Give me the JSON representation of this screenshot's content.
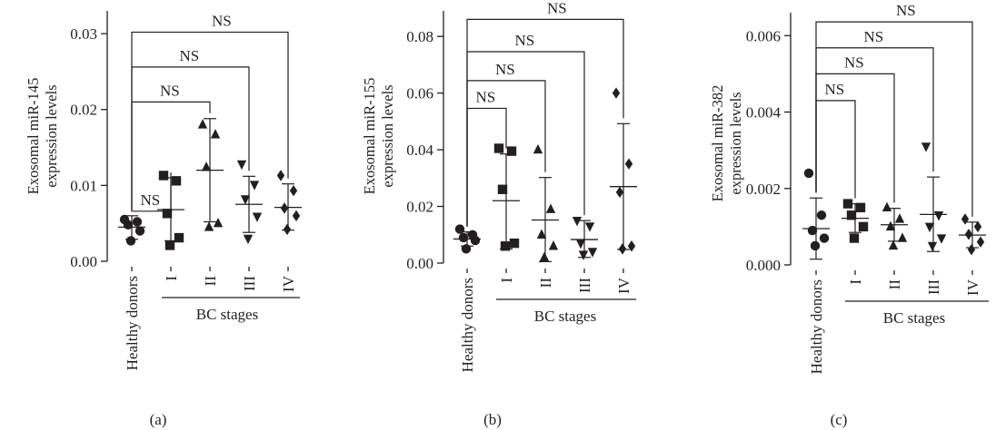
{
  "figure": {
    "group_label": "BC stages"
  },
  "chart_data": [
    {
      "type": "scatter",
      "panel_label": "(a)",
      "ylabel_lines": [
        "Exosomal miR-145",
        "expression levels"
      ],
      "ylim": [
        0,
        0.033
      ],
      "yticks": [
        0,
        0.01,
        0.02,
        0.03
      ],
      "ytick_labels": [
        "0.00",
        "0.01",
        "0.02",
        "0.03"
      ],
      "categories": [
        "Healthy donors",
        "I",
        "II",
        "III",
        "IV"
      ],
      "markers": [
        "circle",
        "square",
        "triangle",
        "triangle-down",
        "diamond"
      ],
      "points": [
        [
          0.0055,
          0.0052,
          0.0048,
          0.004,
          0.0027
        ],
        [
          0.0113,
          0.0106,
          0.0063,
          0.0031,
          0.0021
        ],
        [
          0.018,
          0.0167,
          0.0124,
          0.005,
          0.0045
        ],
        [
          0.0128,
          0.0101,
          0.0082,
          0.0059,
          0.003
        ],
        [
          0.0113,
          0.0093,
          0.007,
          0.006,
          0.0042
        ]
      ],
      "means": [
        0.0045,
        0.0068,
        0.012,
        0.0075,
        0.0071
      ],
      "sd_upper": [
        0.006,
        0.011,
        0.0188,
        0.0112,
        0.0102
      ],
      "sd_lower": [
        0.0029,
        0.0027,
        0.0052,
        0.0038,
        0.0041
      ],
      "brackets": [
        {
          "to": 1,
          "y": 0.0066,
          "label": "NS"
        },
        {
          "to": 2,
          "y": 0.021,
          "label": "NS"
        },
        {
          "to": 3,
          "y": 0.0256,
          "label": "NS"
        },
        {
          "to": 4,
          "y": 0.0302,
          "label": "NS"
        }
      ]
    },
    {
      "type": "scatter",
      "panel_label": "(b)",
      "ylabel_lines": [
        "Exosomal miR-155",
        "expression levels"
      ],
      "ylim": [
        0,
        0.089
      ],
      "yticks": [
        0,
        0.02,
        0.04,
        0.06,
        0.08
      ],
      "ytick_labels": [
        "0.00",
        "0.02",
        "0.04",
        "0.06",
        "0.08"
      ],
      "categories": [
        "Healthy donors",
        "I",
        "II",
        "III",
        "IV"
      ],
      "markers": [
        "circle",
        "square",
        "triangle",
        "triangle-down",
        "diamond"
      ],
      "points": [
        [
          0.012,
          0.01,
          0.009,
          0.008,
          0.005
        ],
        [
          0.0405,
          0.0395,
          0.026,
          0.007,
          0.006
        ],
        [
          0.04,
          0.019,
          0.01,
          0.006,
          0.002
        ],
        [
          0.015,
          0.013,
          0.007,
          0.004,
          0.003
        ],
        [
          0.06,
          0.035,
          0.025,
          0.006,
          0.005
        ]
      ],
      "means": [
        0.0085,
        0.022,
        0.0152,
        0.0083,
        0.027
      ],
      "sd_upper": [
        0.011,
        0.0385,
        0.0302,
        0.015,
        0.0492
      ],
      "sd_lower": [
        0.006,
        0.005,
        0.0005,
        0.002,
        0.0048
      ],
      "brackets": [
        {
          "to": 1,
          "y": 0.0546,
          "label": "NS"
        },
        {
          "to": 2,
          "y": 0.0644,
          "label": "NS"
        },
        {
          "to": 3,
          "y": 0.0746,
          "label": "NS"
        },
        {
          "to": 4,
          "y": 0.086,
          "label": "NS"
        }
      ]
    },
    {
      "type": "scatter",
      "panel_label": "(c)",
      "ylabel_lines": [
        "Exosomal miR-382",
        "expression levels"
      ],
      "ylim": [
        0,
        0.0066
      ],
      "yticks": [
        0,
        0.002,
        0.004,
        0.006
      ],
      "ytick_labels": [
        "0.000",
        "0.002",
        "0.004",
        "0.006"
      ],
      "categories": [
        "Healthy donors",
        "I",
        "II",
        "III",
        "IV"
      ],
      "markers": [
        "circle",
        "square",
        "triangle",
        "triangle-down",
        "diamond"
      ],
      "points": [
        [
          0.0024,
          0.0013,
          0.0009,
          0.0007,
          0.0005
        ],
        [
          0.0016,
          0.0015,
          0.0013,
          0.001,
          0.0007
        ],
        [
          0.0015,
          0.0012,
          0.001,
          0.0007,
          0.0005
        ],
        [
          0.0031,
          0.0013,
          0.001,
          0.0007,
          0.0005
        ],
        [
          0.0012,
          0.001,
          0.0008,
          0.0006,
          0.0004
        ]
      ],
      "means": [
        0.00095,
        0.00122,
        0.00105,
        0.00132,
        0.00078
      ],
      "sd_upper": [
        0.00175,
        0.0016,
        0.00148,
        0.0023,
        0.00112
      ],
      "sd_lower": [
        0.00015,
        0.00085,
        0.00062,
        0.00035,
        0.00045
      ],
      "brackets": [
        {
          "to": 1,
          "y": 0.0043,
          "label": "NS"
        },
        {
          "to": 2,
          "y": 0.005,
          "label": "NS"
        },
        {
          "to": 3,
          "y": 0.00568,
          "label": "NS"
        },
        {
          "to": 4,
          "y": 0.00636,
          "label": "NS"
        }
      ]
    }
  ]
}
